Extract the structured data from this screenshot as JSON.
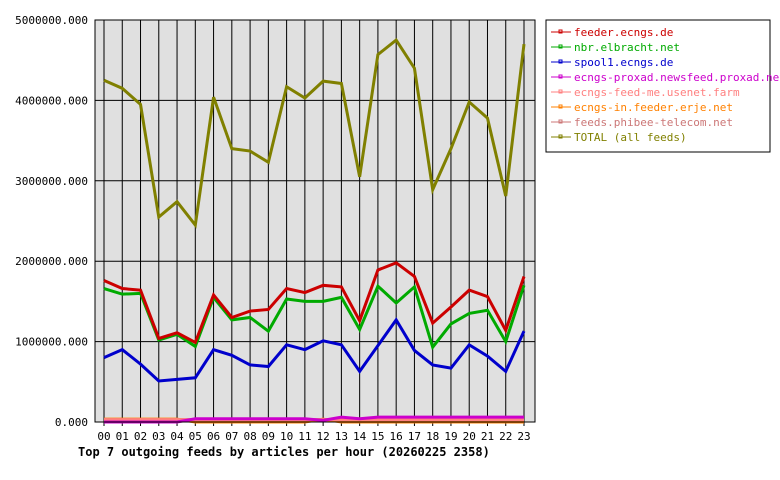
{
  "chart_data": {
    "type": "line",
    "title": "Top 7 outgoing feeds by articles per hour (20260225 2358)",
    "x": [
      "00",
      "01",
      "02",
      "03",
      "04",
      "05",
      "06",
      "07",
      "08",
      "09",
      "10",
      "11",
      "12",
      "13",
      "14",
      "15",
      "16",
      "17",
      "18",
      "19",
      "20",
      "21",
      "22",
      "23"
    ],
    "ylim": [
      0,
      5000000
    ],
    "yticks": [
      "0.000",
      "1000000.000",
      "2000000.000",
      "3000000.000",
      "4000000.000",
      "5000000.000"
    ],
    "ytick_values": [
      0,
      1000000,
      2000000,
      3000000,
      4000000,
      5000000
    ],
    "grid": true,
    "legend_placement": "right",
    "series": [
      {
        "name": "feeder.ecngs.de",
        "color": "#cc0000",
        "values": [
          1760000,
          1660000,
          1640000,
          1040000,
          1110000,
          990000,
          1580000,
          1300000,
          1380000,
          1400000,
          1660000,
          1610000,
          1700000,
          1680000,
          1260000,
          1890000,
          1980000,
          1810000,
          1230000,
          1430000,
          1640000,
          1560000,
          1140000,
          1810000
        ]
      },
      {
        "name": "nbr.elbracht.net",
        "color": "#00aa00",
        "values": [
          1660000,
          1590000,
          1600000,
          1020000,
          1090000,
          940000,
          1550000,
          1270000,
          1300000,
          1130000,
          1530000,
          1500000,
          1500000,
          1550000,
          1150000,
          1690000,
          1480000,
          1680000,
          930000,
          1220000,
          1350000,
          1390000,
          1000000,
          1700000
        ]
      },
      {
        "name": "spool1.ecngs.de",
        "color": "#0000cc",
        "values": [
          800000,
          900000,
          720000,
          510000,
          530000,
          550000,
          900000,
          830000,
          710000,
          690000,
          960000,
          900000,
          1010000,
          960000,
          630000,
          950000,
          1270000,
          890000,
          710000,
          670000,
          960000,
          820000,
          630000,
          1130000
        ]
      },
      {
        "name": "ecngs-proxad.newsfeed.proxad.net",
        "color": "#cc00cc",
        "values": [
          0,
          0,
          0,
          0,
          0,
          40000,
          40000,
          40000,
          40000,
          40000,
          40000,
          40000,
          20000,
          60000,
          40000,
          60000,
          60000,
          60000,
          60000,
          60000,
          60000,
          60000,
          60000,
          60000
        ]
      },
      {
        "name": "ecngs-feed-me.usenet.farm",
        "color": "#ff8080",
        "values": [
          30000,
          30000,
          30000,
          30000,
          30000,
          30000,
          30000,
          30000,
          30000,
          30000,
          30000,
          30000,
          30000,
          30000,
          30000,
          30000,
          30000,
          30000,
          30000,
          30000,
          30000,
          30000,
          30000,
          30000
        ]
      },
      {
        "name": "ecngs-in.feeder.erje.net",
        "color": "#ff8000",
        "values": [
          35000,
          35000,
          35000,
          35000,
          35000,
          0,
          0,
          0,
          0,
          0,
          0,
          0,
          35000,
          0,
          0,
          0,
          0,
          0,
          0,
          0,
          0,
          0,
          0,
          0
        ]
      },
      {
        "name": "feeds.phibee-telecom.net",
        "color": "#cc7777",
        "values": [
          30000,
          30000,
          30000,
          30000,
          30000,
          30000,
          30000,
          30000,
          30000,
          30000,
          30000,
          30000,
          30000,
          30000,
          30000,
          30000,
          30000,
          30000,
          30000,
          30000,
          30000,
          30000,
          30000,
          30000
        ]
      },
      {
        "name": "TOTAL (all feeds)",
        "color": "#808000",
        "values": [
          4250000,
          4150000,
          3950000,
          2550000,
          2740000,
          2450000,
          4040000,
          3400000,
          3370000,
          3230000,
          4170000,
          4030000,
          4240000,
          4210000,
          3050000,
          4570000,
          4750000,
          4400000,
          2890000,
          3400000,
          3980000,
          3780000,
          2810000,
          4700000
        ]
      }
    ]
  }
}
